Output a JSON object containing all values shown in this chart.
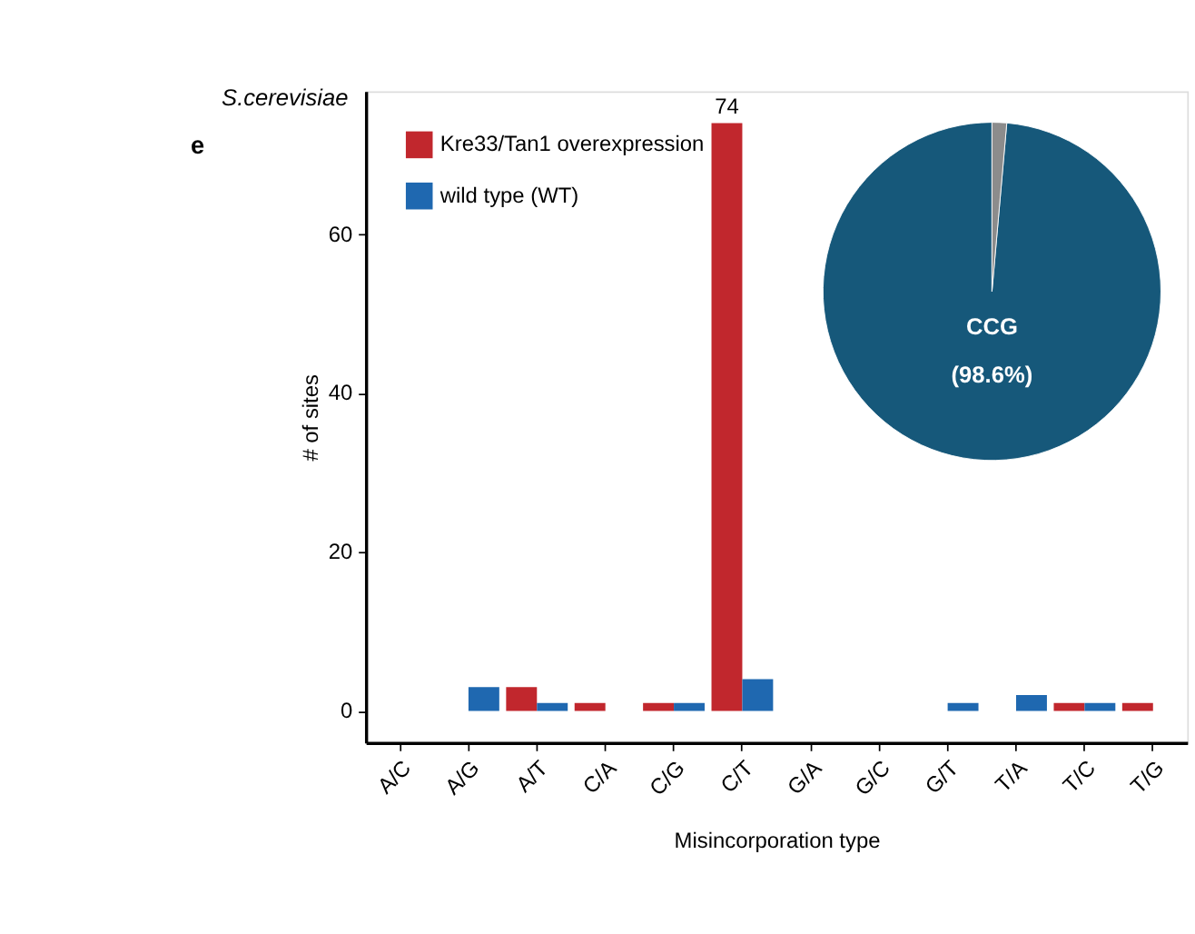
{
  "chart_data": [
    {
      "type": "bar",
      "title": "S.cerevisiae",
      "annotations": [
        "e"
      ],
      "xlabel": "Misincorporation type",
      "ylabel": "# of sites",
      "categories": [
        "A/C",
        "A/G",
        "A/T",
        "C/A",
        "C/G",
        "C/T",
        "G/A",
        "G/C",
        "G/T",
        "T/A",
        "T/C",
        "T/G"
      ],
      "series": [
        {
          "name": "Kre33/Tan1 overexpression",
          "color": "#c1272d",
          "values": [
            0,
            0,
            3,
            1,
            1,
            74,
            0,
            0,
            0,
            0,
            1,
            1
          ],
          "value_labels": [
            null,
            null,
            null,
            null,
            null,
            "74",
            null,
            null,
            null,
            null,
            null,
            null
          ]
        },
        {
          "name": "wild type (WT)",
          "color": "#1f68b0",
          "values": [
            0,
            3,
            1,
            0,
            1,
            4,
            0,
            0,
            1,
            2,
            1,
            0
          ]
        }
      ],
      "ylim": [
        -4,
        78
      ],
      "yticks": [
        0,
        20,
        40,
        60
      ],
      "grid": false,
      "legend": "top left"
    },
    {
      "type": "pie",
      "categories": [
        "CCG",
        null
      ],
      "values": [
        98.6,
        1.4
      ],
      "colors": [
        "#16587a",
        "#8c8c8c"
      ],
      "value_labels": [
        "(98.6%)",
        null
      ]
    }
  ]
}
